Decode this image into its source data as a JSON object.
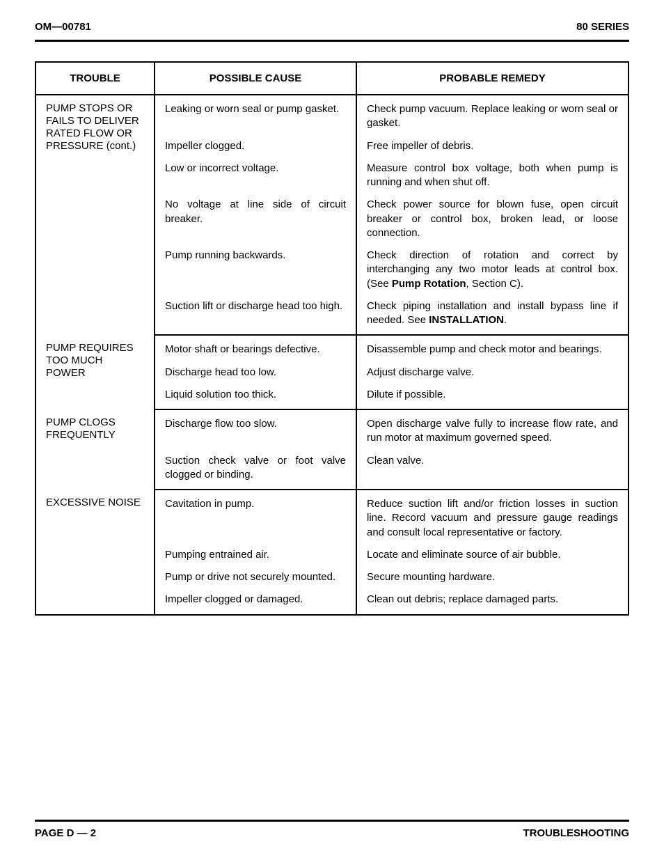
{
  "header": {
    "left": "OM—00781",
    "right": "80 SERIES"
  },
  "footer": {
    "left": "PAGE D — 2",
    "right": "TROUBLESHOOTING"
  },
  "columns": {
    "trouble": "TROUBLE",
    "cause": "POSSIBLE CAUSE",
    "remedy": "PROBABLE REMEDY"
  },
  "groups": [
    {
      "trouble": "PUMP STOPS OR FAILS TO DELIVER RATED FLOW OR PRESSURE (cont.)",
      "rows": [
        {
          "cause": "Leaking or worn seal or pump gasket.",
          "remedy": "Check pump vacuum. Replace leaking or worn seal or gasket.",
          "cause_justify": false,
          "remedy_justify": true
        },
        {
          "cause": "Impeller clogged.",
          "remedy": "Free impeller of debris.",
          "cause_justify": false,
          "remedy_justify": false
        },
        {
          "cause": "Low or incorrect voltage.",
          "remedy": "Measure control box voltage, both when pump is running and when shut off.",
          "cause_justify": false,
          "remedy_justify": true
        },
        {
          "cause": "No voltage at line side of circuit breaker.",
          "remedy": "Check power source for blown fuse, open circuit breaker or control box, broken lead, or loose connection.",
          "cause_justify": true,
          "remedy_justify": true
        },
        {
          "cause": "Pump running backwards.",
          "remedy_html": "Check direction of rotation and correct by interchanging any two motor leads at control box. (See <b>Pump Rotation</b>, Section C).",
          "cause_justify": false,
          "remedy_justify": true
        },
        {
          "cause": "Suction lift or discharge head too high.",
          "remedy_html": "Check piping installation and install bypass line if needed. See <b>INSTAL­LATION</b>.",
          "cause_justify": false,
          "remedy_justify": true
        }
      ]
    },
    {
      "trouble": "PUMP REQUIRES TOO MUCH POWER",
      "rows": [
        {
          "cause": "Motor shaft or bearings defective.",
          "remedy": "Disassemble pump and check mo­tor and bearings.",
          "cause_justify": false,
          "remedy_justify": false
        },
        {
          "cause": "Discharge head too low.",
          "remedy": "Adjust discharge valve.",
          "cause_justify": false,
          "remedy_justify": false
        },
        {
          "cause": "Liquid solution too thick.",
          "remedy": "Dilute if possible.",
          "cause_justify": false,
          "remedy_justify": false
        }
      ]
    },
    {
      "trouble": "PUMP CLOGS FREQUENTLY",
      "rows": [
        {
          "cause": "Discharge flow too slow.",
          "remedy": "Open discharge valve fully to in­crease flow rate, and run motor at maximum governed speed.",
          "cause_justify": false,
          "remedy_justify": true
        },
        {
          "cause": "Suction check valve or foot valve clogged or binding.",
          "remedy": "Clean valve.",
          "cause_justify": true,
          "remedy_justify": false
        }
      ]
    },
    {
      "trouble": "EXCESSIVE NOISE",
      "rows": [
        {
          "cause": "Cavitation in pump.",
          "remedy": "Reduce suction lift and/or friction losses in suction line. Record vac­uum and pressure gauge readings and consult local representative or factory.",
          "cause_justify": false,
          "remedy_justify": true
        },
        {
          "cause": "Pumping entrained air.",
          "remedy": "Locate and eliminate source of air bubble.",
          "cause_justify": false,
          "remedy_justify": false
        },
        {
          "cause": "Pump or drive not securely mounted.",
          "remedy": "Secure mounting hardware.",
          "cause_justify": false,
          "remedy_justify": false
        },
        {
          "cause": "Impeller clogged or damaged.",
          "remedy": "Clean out debris; replace damaged parts.",
          "cause_justify": false,
          "remedy_justify": false
        }
      ]
    }
  ]
}
